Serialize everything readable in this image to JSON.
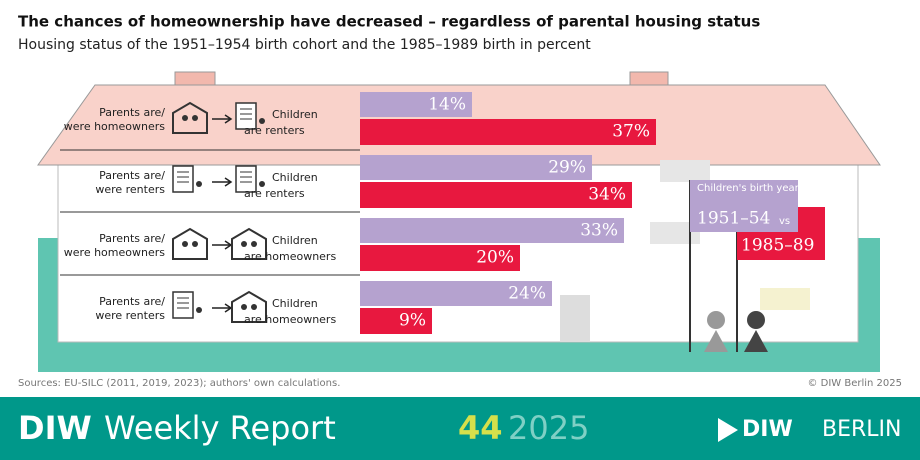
{
  "chart_data": {
    "type": "bar",
    "title": "The chances of homeownership have decreased – regardless of parental housing status",
    "subtitle": "Housing status of the 1951–1954 birth cohort and the 1985–1989 birth in percent",
    "categories": [
      {
        "parents": [
          "Parents are/",
          "were homeowners"
        ],
        "children": [
          "Children",
          "are renters"
        ]
      },
      {
        "parents": [
          "Parents are/",
          "were renters"
        ],
        "children": [
          "Children",
          "are renters"
        ]
      },
      {
        "parents": [
          "Parents are/",
          "were homeowners"
        ],
        "children": [
          "Children",
          "are homeowners"
        ]
      },
      {
        "parents": [
          "Parents are/",
          "were renters"
        ],
        "children": [
          "Children",
          "are homeowners"
        ]
      }
    ],
    "legend_title": "Children's birth year",
    "legend_joiner": "vs",
    "series": [
      {
        "name": "1951–54",
        "color": "#b5a2cf",
        "values": [
          14,
          29,
          33,
          24
        ],
        "value_labels": [
          "14%",
          "29%",
          "33%",
          "24%"
        ]
      },
      {
        "name": "1985–89",
        "color": "#e8183f",
        "values": [
          37,
          34,
          20,
          9
        ],
        "value_labels": [
          "37%",
          "34%",
          "20%",
          "9%"
        ]
      }
    ],
    "source": "Sources: EU-SILC (2011, 2019, 2023); authors' own calculations.",
    "copyright": "© DIW Berlin 2025"
  },
  "footer": {
    "publication": [
      "DIW",
      "Weekly Report"
    ],
    "issue": "44",
    "year": "2025",
    "logo": [
      "DIW",
      "BERLIN"
    ]
  }
}
